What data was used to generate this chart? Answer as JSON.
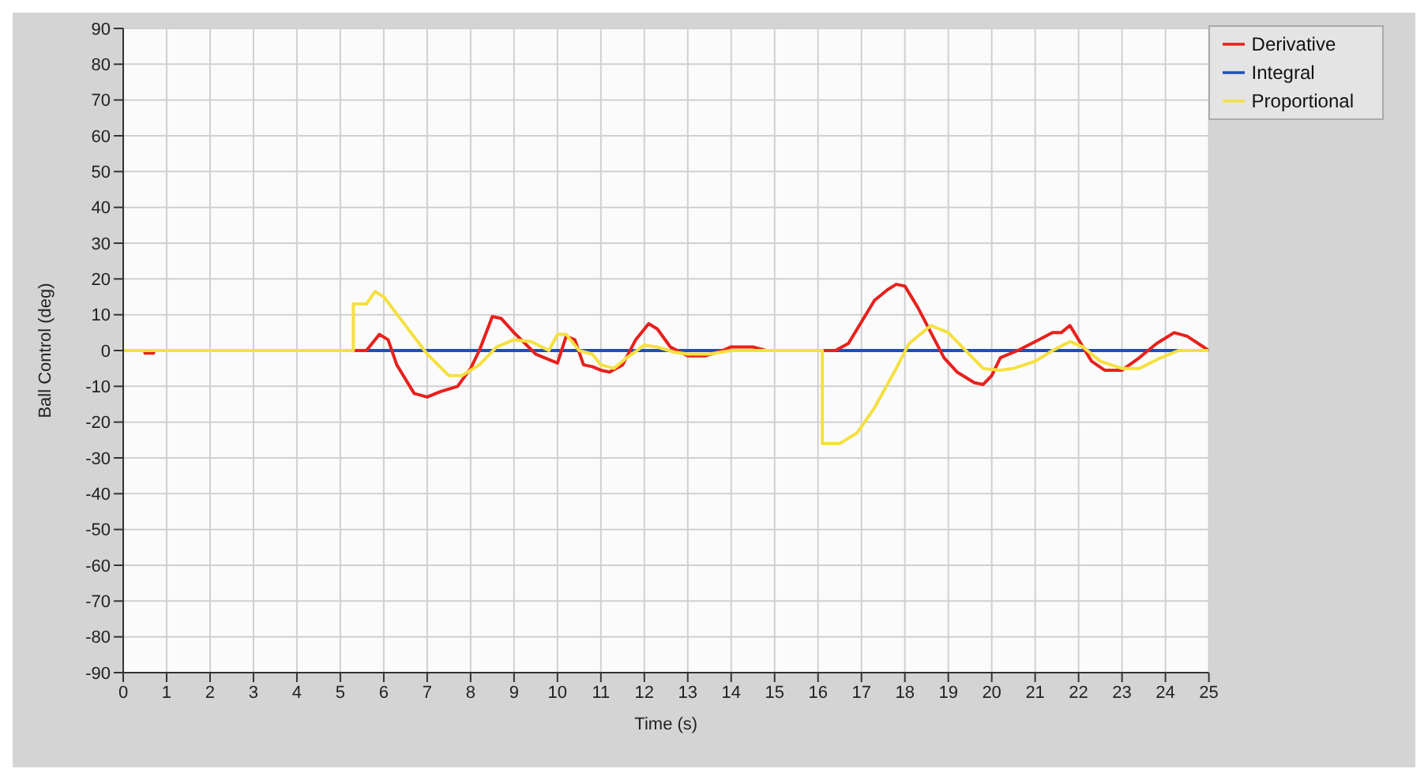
{
  "chart_data": {
    "type": "line",
    "xlabel": "Time (s)",
    "ylabel": "Ball Control (deg)",
    "xlim": [
      0,
      25
    ],
    "xticks": [
      0,
      1,
      2,
      3,
      4,
      5,
      6,
      7,
      8,
      9,
      10,
      11,
      12,
      13,
      14,
      15,
      16,
      17,
      18,
      19,
      20,
      21,
      22,
      23,
      24,
      25
    ],
    "ylim": [
      -90,
      90
    ],
    "yticks": [
      -90,
      -80,
      -70,
      -60,
      -50,
      -40,
      -30,
      -20,
      -10,
      0,
      10,
      20,
      30,
      40,
      50,
      60,
      70,
      80,
      90
    ],
    "grid": true,
    "legend": "top right",
    "marker": "none",
    "line_style": "solid",
    "series": [
      {
        "name": "Proportional",
        "color": "#f5e040",
        "x": [
          0,
          5.3,
          5.3,
          5.6,
          5.8,
          6.0,
          6.5,
          7.0,
          7.5,
          7.8,
          8.2,
          8.6,
          9.0,
          9.4,
          9.8,
          10.0,
          10.2,
          10.5,
          10.8,
          11.0,
          11.3,
          11.6,
          12.0,
          12.3,
          12.7,
          13.0,
          13.5,
          14.0,
          16.1,
          16.1,
          16.5,
          16.9,
          17.3,
          17.8,
          18.1,
          18.6,
          19.0,
          19.4,
          19.8,
          20.2,
          20.5,
          21.0,
          21.4,
          21.8,
          22.1,
          22.5,
          23.0,
          23.4,
          23.9,
          24.3,
          25
        ],
        "values": [
          0,
          0,
          13,
          13,
          16.5,
          15,
          7,
          -1,
          -7,
          -7,
          -4,
          1,
          3,
          2.5,
          0,
          4.5,
          4.5,
          0,
          -1,
          -4,
          -5,
          -2,
          1.5,
          1,
          -0.5,
          -1,
          -1,
          0,
          0,
          -26,
          -26,
          -23,
          -16,
          -5,
          2,
          7,
          5,
          0,
          -5,
          -5.5,
          -5,
          -3,
          0,
          2.5,
          1,
          -3,
          -5,
          -5,
          -2,
          0,
          0
        ]
      },
      {
        "name": "Derivative",
        "color": "#e8201c",
        "x": [
          0,
          0.5,
          0.5,
          0.7,
          0.7,
          5.3,
          5.6,
          5.9,
          6.1,
          6.3,
          6.7,
          7.0,
          7.3,
          7.7,
          8.0,
          8.2,
          8.5,
          8.7,
          9.0,
          9.5,
          9.9,
          10.0,
          10.2,
          10.4,
          10.6,
          10.8,
          11.0,
          11.2,
          11.5,
          11.8,
          12.1,
          12.3,
          12.6,
          13.0,
          13.4,
          13.8,
          14.0,
          14.5,
          14.8,
          16.4,
          16.7,
          17.0,
          17.3,
          17.6,
          17.8,
          18.0,
          18.3,
          18.6,
          18.9,
          19.2,
          19.6,
          19.8,
          20.0,
          20.2,
          20.6,
          21.0,
          21.4,
          21.6,
          21.8,
          22.0,
          22.3,
          22.6,
          23.0,
          23.4,
          23.8,
          24.2,
          24.5,
          25
        ],
        "values": [
          0,
          0,
          -0.7,
          -0.7,
          0,
          0,
          0,
          4.5,
          3,
          -4,
          -12,
          -13,
          -11.5,
          -10,
          -5,
          0,
          9.5,
          9,
          5,
          -1,
          -3,
          -3.5,
          4,
          3,
          -4,
          -4.5,
          -5.5,
          -6,
          -4,
          3,
          7.5,
          6,
          1,
          -1.5,
          -1.5,
          0,
          1,
          1,
          0,
          0,
          2,
          8,
          14,
          17,
          18.5,
          18,
          12,
          5,
          -2,
          -6,
          -9,
          -9.5,
          -7,
          -2,
          0,
          2.5,
          5,
          5,
          7,
          3,
          -3,
          -5.5,
          -5.5,
          -2,
          2,
          5,
          4,
          0
        ]
      },
      {
        "name": "Integral",
        "color": "#1f4fb4",
        "x": [
          0,
          25
        ],
        "values": [
          0,
          0
        ]
      }
    ]
  }
}
